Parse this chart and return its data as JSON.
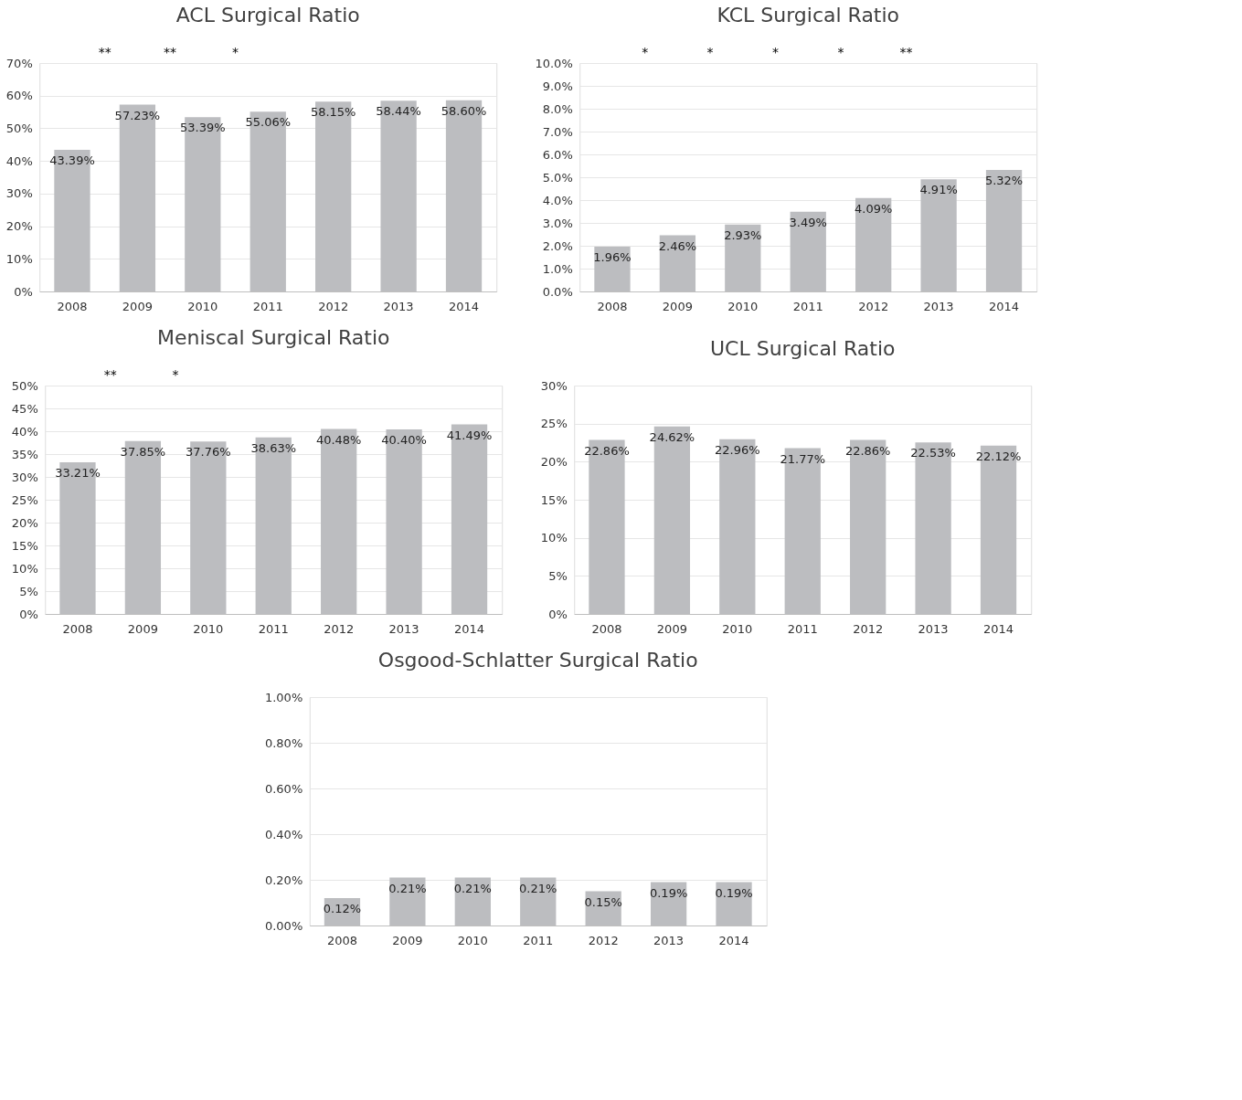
{
  "chart_data": [
    {
      "type": "bar",
      "title": "ACL Surgical Ratio",
      "categories": [
        "2008",
        "2009",
        "2010",
        "2011",
        "2012",
        "2013",
        "2014"
      ],
      "values": [
        43.39,
        57.23,
        53.39,
        55.06,
        58.15,
        58.44,
        58.6
      ],
      "value_labels": [
        "43.39%",
        "57.23%",
        "53.39%",
        "55.06%",
        "58.15%",
        "58.44%",
        "58.60%"
      ],
      "color": "#bcbdc0",
      "ylim": [
        0,
        70
      ],
      "yticks": [
        {
          "value": 0,
          "label": "0%"
        },
        {
          "value": 10,
          "label": "10%"
        },
        {
          "value": 20,
          "label": "20%"
        },
        {
          "value": 30,
          "label": "30%"
        },
        {
          "value": 40,
          "label": "40%"
        },
        {
          "value": 50,
          "label": "50%"
        },
        {
          "value": 60,
          "label": "60%"
        },
        {
          "value": 70,
          "label": "70%"
        }
      ],
      "grid": "y",
      "annotations": [
        "**",
        "**",
        "*"
      ]
    },
    {
      "type": "bar",
      "title": "KCL Surgical Ratio",
      "categories": [
        "2008",
        "2009",
        "2010",
        "2011",
        "2012",
        "2013",
        "2014"
      ],
      "values": [
        1.96,
        2.46,
        2.93,
        3.49,
        4.09,
        4.91,
        5.32
      ],
      "value_labels": [
        "1.96%",
        "2.46%",
        "2.93%",
        "3.49%",
        "4.09%",
        "4.91%",
        "5.32%"
      ],
      "color": "#bcbdc0",
      "ylim": [
        0,
        10
      ],
      "yticks": [
        {
          "value": 0,
          "label": "0.0%"
        },
        {
          "value": 1,
          "label": "1.0%"
        },
        {
          "value": 2,
          "label": "2.0%"
        },
        {
          "value": 3,
          "label": "3.0%"
        },
        {
          "value": 4,
          "label": "4.0%"
        },
        {
          "value": 5,
          "label": "5.0%"
        },
        {
          "value": 6,
          "label": "6.0%"
        },
        {
          "value": 7,
          "label": "7.0%"
        },
        {
          "value": 8,
          "label": "8.0%"
        },
        {
          "value": 9,
          "label": "9.0%"
        },
        {
          "value": 10,
          "label": "10.0%"
        }
      ],
      "grid": "y",
      "annotations": [
        "*",
        "*",
        "*",
        "*",
        "**"
      ]
    },
    {
      "type": "bar",
      "title": "Meniscal Surgical Ratio",
      "categories": [
        "2008",
        "2009",
        "2010",
        "2011",
        "2012",
        "2013",
        "2014"
      ],
      "values": [
        33.21,
        37.85,
        37.76,
        38.63,
        40.48,
        40.4,
        41.49
      ],
      "value_labels": [
        "33.21%",
        "37.85%",
        "37.76%",
        "38.63%",
        "40.48%",
        "40.40%",
        "41.49%"
      ],
      "color": "#bcbdc0",
      "ylim": [
        0,
        50
      ],
      "yticks": [
        {
          "value": 0,
          "label": "0%"
        },
        {
          "value": 5,
          "label": "5%"
        },
        {
          "value": 10,
          "label": "10%"
        },
        {
          "value": 15,
          "label": "15%"
        },
        {
          "value": 20,
          "label": "20%"
        },
        {
          "value": 25,
          "label": "25%"
        },
        {
          "value": 30,
          "label": "30%"
        },
        {
          "value": 35,
          "label": "35%"
        },
        {
          "value": 40,
          "label": "40%"
        },
        {
          "value": 45,
          "label": "45%"
        },
        {
          "value": 50,
          "label": "50%"
        }
      ],
      "grid": "y",
      "annotations": [
        "**",
        "*"
      ]
    },
    {
      "type": "bar",
      "title": "UCL Surgical Ratio",
      "categories": [
        "2008",
        "2009",
        "2010",
        "2011",
        "2012",
        "2013",
        "2014"
      ],
      "values": [
        22.86,
        24.62,
        22.96,
        21.77,
        22.86,
        22.53,
        22.12
      ],
      "value_labels": [
        "22.86%",
        "24.62%",
        "22.96%",
        "21.77%",
        "22.86%",
        "22.53%",
        "22.12%"
      ],
      "color": "#bcbdc0",
      "ylim": [
        0,
        30
      ],
      "yticks": [
        {
          "value": 0,
          "label": "0%"
        },
        {
          "value": 5,
          "label": "5%"
        },
        {
          "value": 10,
          "label": "10%"
        },
        {
          "value": 15,
          "label": "15%"
        },
        {
          "value": 20,
          "label": "20%"
        },
        {
          "value": 25,
          "label": "25%"
        },
        {
          "value": 30,
          "label": "30%"
        }
      ],
      "grid": "y"
    },
    {
      "type": "bar",
      "title": "Osgood-Schlatter Surgical Ratio",
      "categories": [
        "2008",
        "2009",
        "2010",
        "2011",
        "2012",
        "2013",
        "2014"
      ],
      "values": [
        0.12,
        0.21,
        0.21,
        0.21,
        0.15,
        0.19,
        0.19
      ],
      "value_labels": [
        "0.12%",
        "0.21%",
        "0.21%",
        "0.21%",
        "0.15%",
        "0.19%",
        "0.19%"
      ],
      "color": "#bcbdc0",
      "ylim": [
        0,
        1
      ],
      "yticks": [
        {
          "value": 0,
          "label": "0.00%"
        },
        {
          "value": 0.2,
          "label": "0.20%"
        },
        {
          "value": 0.4,
          "label": "0.40%"
        },
        {
          "value": 0.6,
          "label": "0.60%"
        },
        {
          "value": 0.8,
          "label": "0.80%"
        },
        {
          "value": 1,
          "label": "1.00%"
        }
      ],
      "grid": "y"
    }
  ]
}
